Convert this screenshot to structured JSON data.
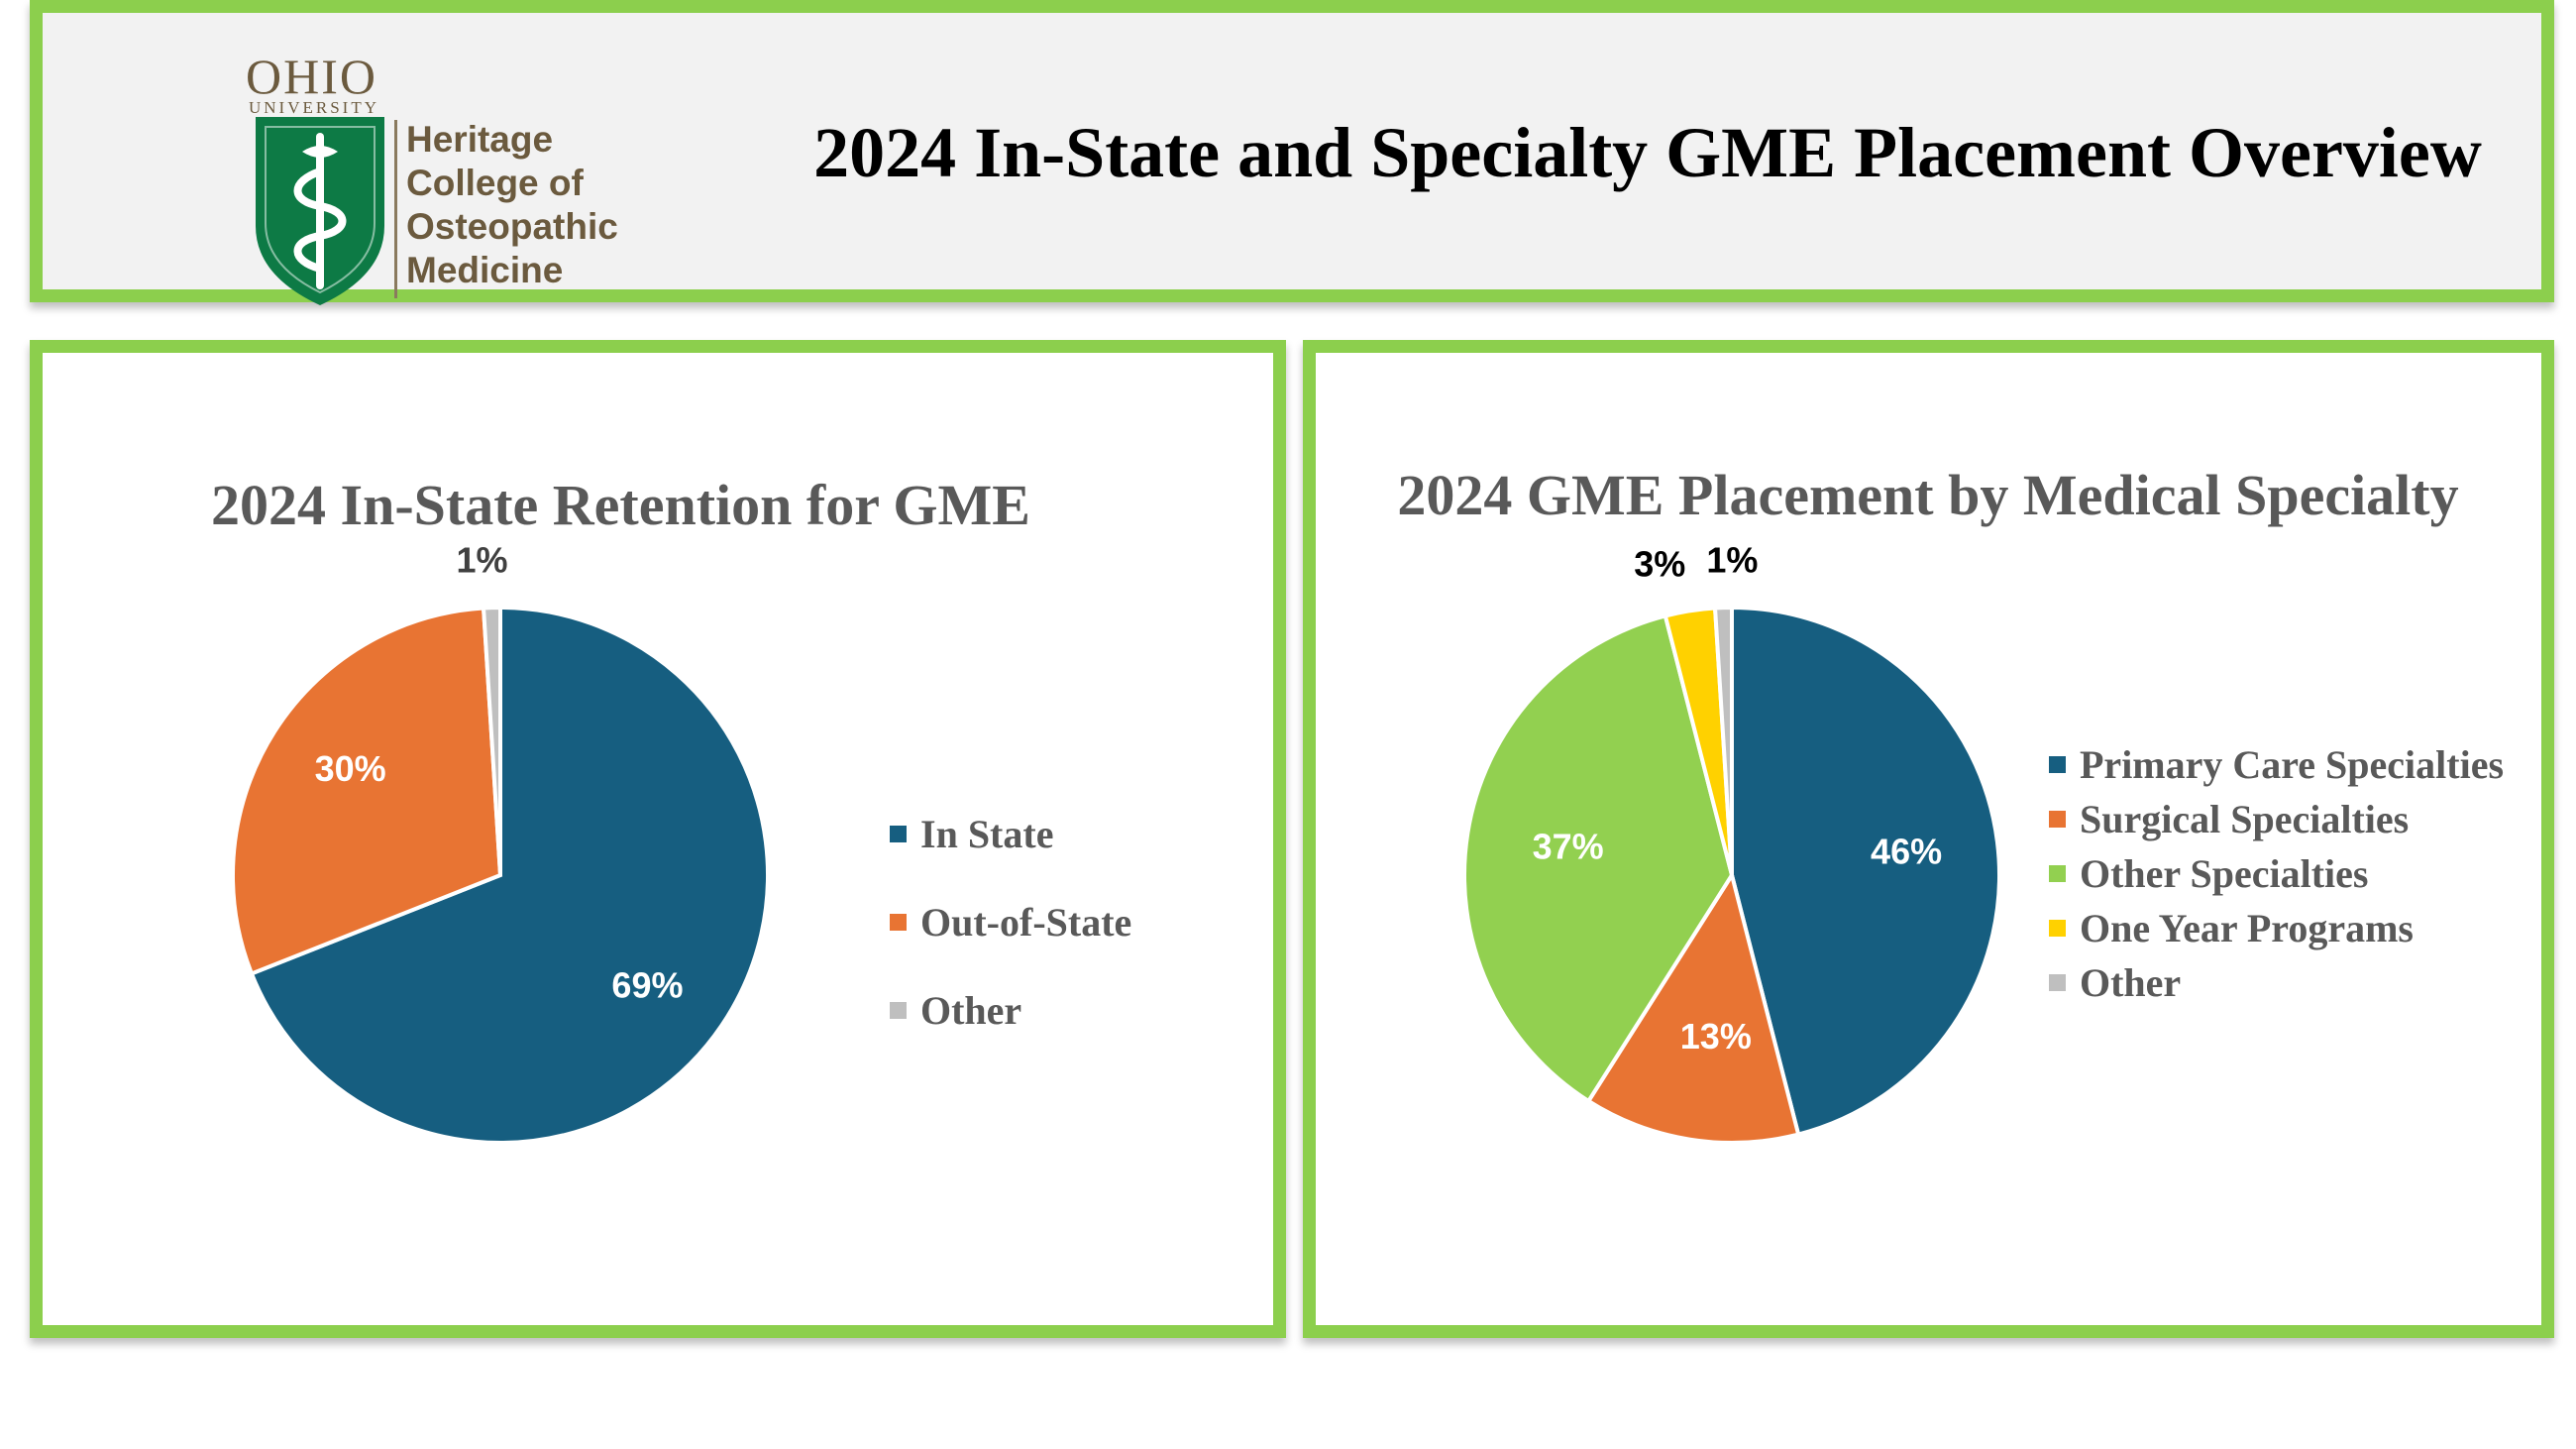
{
  "header": {
    "title": "2024 In-State and Specialty GME Placement Overview",
    "logo": {
      "university": "OHIO",
      "university_sub": "UNIVERSITY",
      "college_lines": [
        "Heritage",
        "College of",
        "Osteopathic",
        "Medicine"
      ],
      "shield_color": "#0d7a45",
      "text_color": "#6b5a3e"
    }
  },
  "colors": {
    "panel_border": "#8ccf4d",
    "header_bg": "#f2f2f2",
    "title_gray": "#595959"
  },
  "chart_data": [
    {
      "type": "pie",
      "title": "2024 In-State Retention for GME",
      "slices": [
        {
          "name": "In State",
          "value": 69,
          "label": "69%",
          "color": "#165e80",
          "label_color": "#ffffff"
        },
        {
          "name": "Out-of-State",
          "value": 30,
          "label": "30%",
          "color": "#e87433",
          "label_color": "#ffffff"
        },
        {
          "name": "Other",
          "value": 1,
          "label": "1%",
          "color": "#bfbfbf",
          "label_color": "#404040"
        }
      ],
      "legend_position": "right"
    },
    {
      "type": "pie",
      "title": "2024 GME Placement by Medical Specialty",
      "slices": [
        {
          "name": "Primary Care Specialties",
          "value": 46,
          "label": "46%",
          "color": "#165e80",
          "label_color": "#ffffff"
        },
        {
          "name": "Surgical Specialties",
          "value": 13,
          "label": "13%",
          "color": "#e87433",
          "label_color": "#ffffff"
        },
        {
          "name": "Other Specialties",
          "value": 37,
          "label": "37%",
          "color": "#92d050",
          "label_color": "#ffffff"
        },
        {
          "name": "One Year Programs",
          "value": 3,
          "label": "3%",
          "color": "#ffd100",
          "label_color": "#000000"
        },
        {
          "name": "Other",
          "value": 1,
          "label": "1%",
          "color": "#bfbfbf",
          "label_color": "#000000"
        }
      ],
      "legend_position": "right"
    }
  ]
}
